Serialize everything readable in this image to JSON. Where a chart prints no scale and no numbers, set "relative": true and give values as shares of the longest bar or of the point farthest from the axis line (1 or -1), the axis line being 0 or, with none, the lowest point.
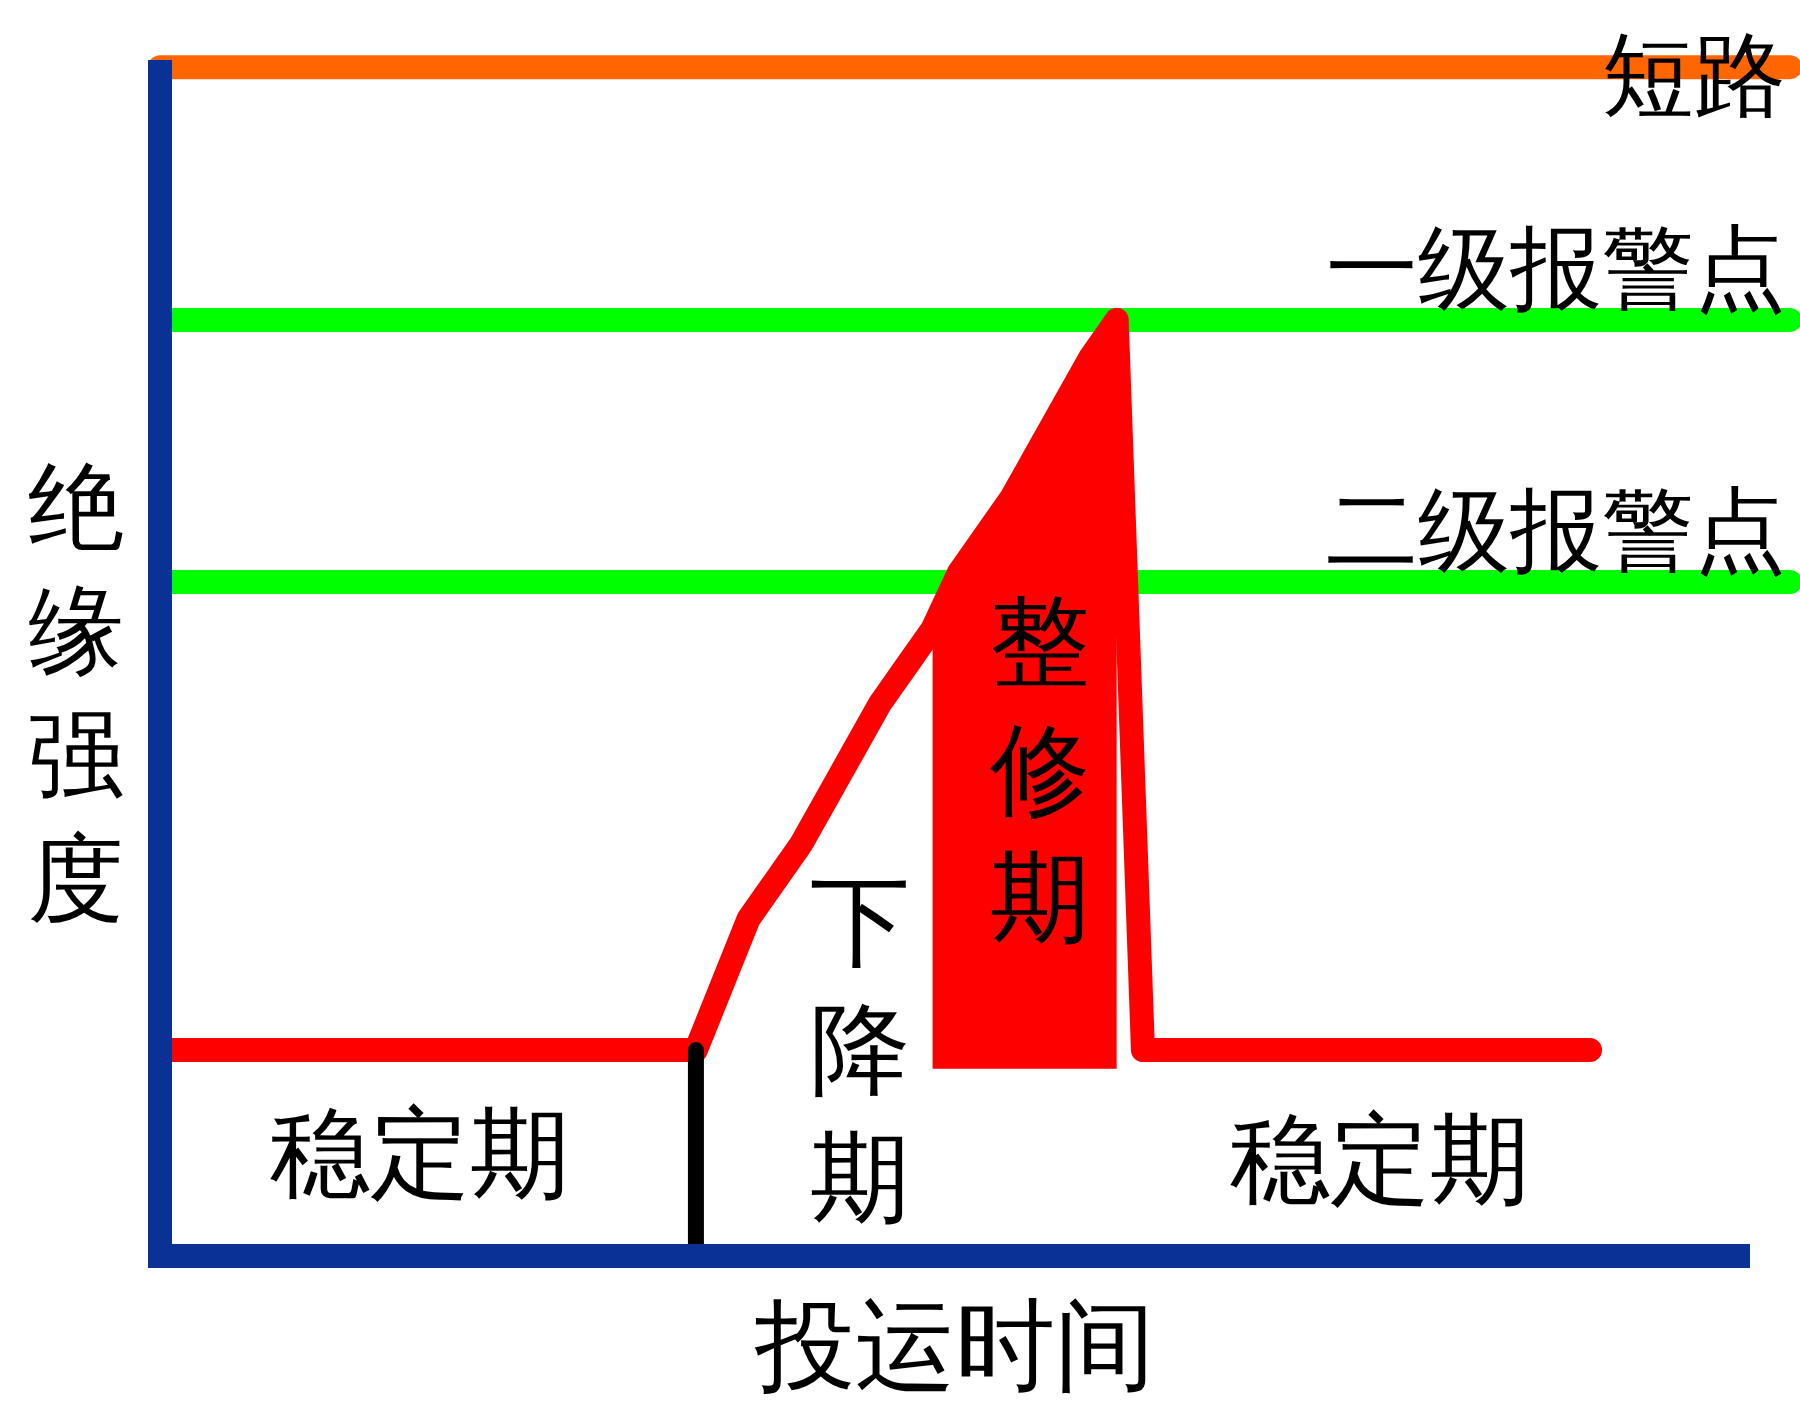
{
  "chart_data": {
    "type": "line",
    "relative": true,
    "xlabel": "投运时间",
    "ylabel": "绝缘强度",
    "categories": [
      null,
      null,
      null,
      null,
      null,
      null,
      null,
      null,
      null,
      null,
      null,
      null,
      null,
      null,
      null,
      null,
      null,
      null,
      null,
      null,
      null,
      null,
      null,
      null,
      null,
      null,
      null,
      null,
      null,
      null,
      null,
      null,
      null,
      null,
      null,
      null,
      null,
      null,
      null,
      null,
      null,
      null,
      null,
      null,
      null,
      null,
      null,
      null,
      null,
      null,
      null,
      null,
      null,
      null,
      null
    ],
    "series": [
      {
        "color": "#ff0000",
        "values": [
          0.22,
          0.22,
          0.22,
          0.22,
          0.22,
          0.22,
          0.22,
          0.22,
          0.22,
          0.22,
          0.22,
          0.22,
          0.22,
          0.22,
          0.22,
          0.22,
          0.22,
          0.22,
          0.22,
          0.22,
          0.22,
          0.29,
          0.36,
          0.4,
          0.44,
          0.49,
          0.54,
          0.59,
          0.63,
          0.67,
          0.73,
          0.77,
          0.81,
          0.86,
          0.91,
          0.96,
          1.0,
          0.22,
          0.22,
          0.22,
          0.22,
          0.22,
          0.22,
          0.22,
          0.22,
          0.22,
          0.22,
          0.22,
          0.22,
          0.22,
          0.22,
          0.22,
          0.22,
          0.22,
          0.22
        ],
        "lower": [
          null,
          null,
          null,
          null,
          null,
          null,
          null,
          null,
          null,
          null,
          null,
          null,
          null,
          null,
          null,
          null,
          null,
          null,
          null,
          null,
          null,
          null,
          null,
          null,
          null,
          null,
          null,
          null,
          null,
          0.2,
          0.2,
          0.2,
          0.2,
          0.2,
          0.2,
          0.2,
          0.2,
          null,
          null,
          null,
          null,
          null,
          null,
          null,
          null,
          null,
          null,
          null,
          null,
          null,
          null,
          null,
          null,
          null,
          null
        ],
        "upper": [
          null,
          null,
          null,
          null,
          null,
          null,
          null,
          null,
          null,
          null,
          null,
          null,
          null,
          null,
          null,
          null,
          null,
          null,
          null,
          null,
          null,
          null,
          null,
          null,
          null,
          null,
          null,
          null,
          null,
          0.67,
          0.73,
          0.77,
          0.81,
          0.86,
          0.91,
          0.96,
          1.0,
          null,
          null,
          null,
          null,
          null,
          null,
          null,
          null,
          null,
          null,
          null,
          null,
          null,
          null,
          null,
          null,
          null,
          null
        ]
      }
    ],
    "ref_lines": [
      {
        "axis": "y",
        "value": 1.27,
        "label": "短路",
        "color": "#ff6600"
      },
      {
        "axis": "y",
        "value": 1.0,
        "label": "一级报警点",
        "color": "#00ff00"
      },
      {
        "axis": "y",
        "value": 0.72,
        "label": "二级报警点",
        "color": "#00ff00"
      }
    ],
    "annotations": [
      "稳定期",
      "下降期",
      "整修期",
      "稳定期"
    ]
  }
}
